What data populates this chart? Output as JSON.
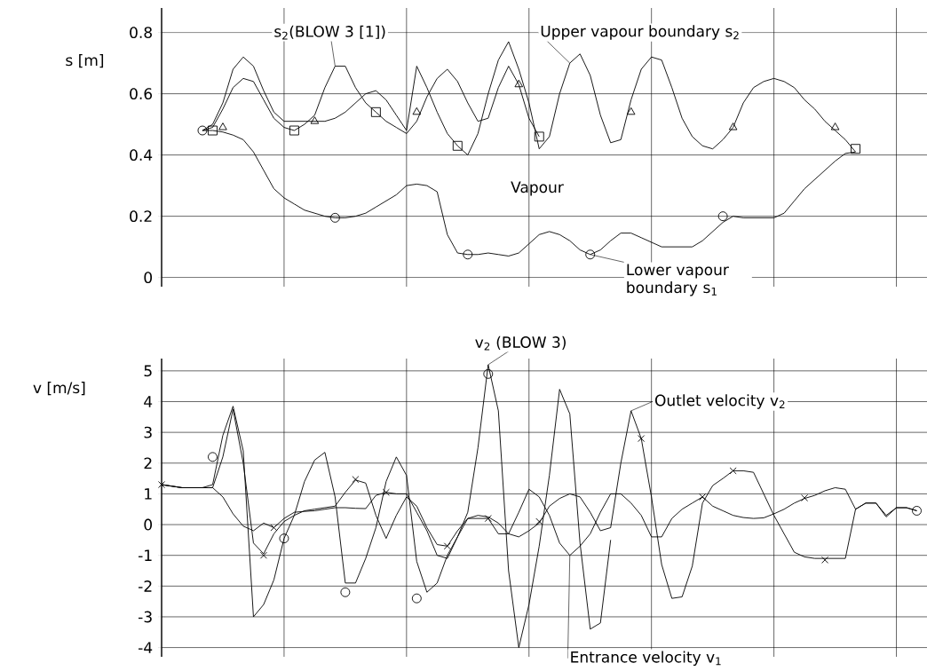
{
  "chart_data": [
    {
      "type": "line",
      "ylabel": "s [m]",
      "ylim": [
        -0.03,
        0.88
      ],
      "yticks": [
        0,
        0.2,
        0.4,
        0.6,
        0.8
      ],
      "grid": true,
      "tick_labels": "y",
      "annotations": [
        "Vapour"
      ],
      "categories": [
        null,
        null,
        null,
        null,
        null,
        null,
        null,
        null,
        null,
        null,
        null,
        null,
        null,
        null,
        null,
        null,
        null,
        null,
        null,
        null,
        null,
        null,
        null,
        null,
        null,
        null,
        null,
        null,
        null,
        null,
        null,
        null,
        null,
        null,
        null,
        null,
        null,
        null,
        null,
        null,
        null,
        null,
        null,
        null,
        null,
        null,
        null,
        null,
        null,
        null,
        null,
        null,
        null,
        null,
        null,
        null,
        null,
        null,
        null,
        null,
        null,
        null,
        null,
        null,
        null,
        null,
        null,
        null,
        null,
        null,
        null,
        null,
        null,
        null,
        null
      ],
      "series": [
        {
          "name": "Upper vapour boundary s$_{2}$",
          "color": "#000000",
          "values": [
            null,
            null,
            null,
            null,
            0.48,
            0.5,
            0.57,
            0.68,
            0.72,
            0.69,
            0.61,
            0.54,
            0.51,
            0.51,
            0.51,
            0.51,
            0.51,
            0.52,
            0.54,
            0.57,
            0.6,
            0.61,
            0.58,
            0.53,
            0.48,
            0.69,
            0.62,
            0.54,
            0.47,
            0.43,
            0.4,
            0.47,
            0.6,
            0.71,
            0.77,
            0.68,
            0.57,
            0.42,
            0.46,
            0.6,
            0.7,
            0.73,
            0.66,
            0.53,
            0.44,
            0.45,
            0.58,
            0.68,
            0.72,
            0.71,
            0.62,
            0.52,
            0.46,
            0.43,
            0.42,
            0.45,
            0.49,
            0.57,
            0.62,
            0.64,
            0.65,
            0.64,
            0.62,
            0.58,
            0.55,
            0.51,
            0.48,
            0.45,
            0.41,
            null,
            null,
            null,
            null,
            null,
            null
          ]
        },
        {
          "name": "s$_{2}$(BLOW 3 [1])",
          "color": "#000000",
          "values": [
            null,
            null,
            null,
            null,
            0.48,
            0.49,
            0.55,
            0.62,
            0.65,
            0.64,
            0.58,
            0.52,
            0.49,
            0.48,
            0.5,
            0.53,
            0.62,
            0.69,
            0.69,
            0.62,
            0.57,
            0.54,
            0.51,
            0.49,
            0.47,
            0.51,
            0.59,
            0.65,
            0.68,
            0.64,
            0.57,
            0.51,
            0.52,
            0.62,
            0.69,
            0.63,
            0.52,
            0.46,
            null,
            null,
            null,
            null,
            null,
            null,
            null,
            null,
            null,
            null,
            null,
            null,
            null,
            null,
            null,
            null,
            null,
            null,
            null,
            null,
            null,
            null,
            null,
            null,
            null,
            null,
            null,
            null,
            null,
            null,
            null,
            null,
            null,
            null,
            null,
            null,
            null
          ]
        },
        {
          "name": "Lower vapour boundary s$_{1}$",
          "color": "#000000",
          "values": [
            null,
            null,
            null,
            null,
            0.48,
            0.48,
            0.475,
            0.465,
            0.45,
            0.41,
            0.35,
            0.29,
            0.26,
            0.24,
            0.22,
            0.21,
            0.2,
            0.195,
            0.195,
            0.2,
            0.21,
            0.23,
            0.25,
            0.27,
            0.3,
            0.305,
            0.3,
            0.28,
            0.14,
            0.08,
            0.075,
            0.075,
            0.08,
            0.075,
            0.07,
            0.08,
            0.11,
            0.14,
            0.15,
            0.14,
            0.12,
            0.09,
            0.075,
            0.09,
            0.12,
            0.145,
            0.145,
            0.13,
            0.115,
            0.1,
            0.1,
            0.1,
            0.1,
            0.12,
            0.15,
            0.18,
            0.2,
            0.195,
            0.195,
            0.195,
            0.195,
            0.21,
            0.25,
            0.29,
            0.32,
            0.35,
            0.38,
            0.405,
            0.41,
            null,
            null,
            null,
            null,
            null,
            null
          ]
        },
        {
          "type": "scatter",
          "marker": "triangle",
          "color": "#000000",
          "values": [
            null,
            null,
            null,
            null,
            null,
            null,
            0.49,
            null,
            null,
            null,
            null,
            null,
            null,
            null,
            null,
            0.51,
            null,
            null,
            null,
            null,
            null,
            null,
            null,
            null,
            null,
            0.54,
            null,
            null,
            null,
            null,
            null,
            null,
            null,
            null,
            null,
            0.63,
            null,
            null,
            null,
            null,
            null,
            null,
            null,
            null,
            null,
            null,
            0.54,
            null,
            null,
            null,
            null,
            null,
            null,
            null,
            null,
            null,
            0.49,
            null,
            null,
            null,
            null,
            null,
            null,
            null,
            null,
            null,
            0.49,
            null,
            null,
            null,
            null,
            null,
            null,
            null,
            null
          ]
        },
        {
          "type": "scatter",
          "marker": "square",
          "color": "#000000",
          "values": [
            null,
            null,
            null,
            null,
            null,
            0.48,
            null,
            null,
            null,
            null,
            null,
            null,
            null,
            0.48,
            null,
            null,
            null,
            null,
            null,
            null,
            null,
            0.54,
            null,
            null,
            null,
            null,
            null,
            null,
            null,
            0.43,
            null,
            null,
            null,
            null,
            null,
            null,
            null,
            0.46,
            null,
            null,
            null,
            null,
            null,
            null,
            null,
            null,
            null,
            null,
            null,
            null,
            null,
            null,
            null,
            null,
            null,
            null,
            null,
            null,
            null,
            null,
            null,
            null,
            null,
            null,
            null,
            null,
            null,
            null,
            0.42,
            null,
            null,
            null,
            null,
            null,
            null
          ]
        },
        {
          "type": "scatter",
          "marker": "circle",
          "color": "#000000",
          "values": [
            null,
            null,
            null,
            null,
            0.48,
            null,
            null,
            null,
            null,
            null,
            null,
            null,
            null,
            null,
            null,
            null,
            null,
            0.195,
            null,
            null,
            null,
            null,
            null,
            null,
            null,
            null,
            null,
            null,
            null,
            null,
            0.075,
            null,
            null,
            null,
            null,
            null,
            null,
            null,
            null,
            null,
            null,
            null,
            0.075,
            null,
            null,
            null,
            null,
            null,
            null,
            null,
            null,
            null,
            null,
            null,
            null,
            0.2,
            null,
            null,
            null,
            null,
            null,
            null,
            null,
            null,
            null,
            null,
            null,
            null,
            null,
            null,
            null,
            null,
            null,
            null,
            null
          ]
        }
      ]
    },
    {
      "type": "line",
      "ylabel": "v [m/s]",
      "ylim": [
        -4.3,
        5.4
      ],
      "yticks": [
        -4,
        -3,
        -2,
        -1,
        0,
        1,
        2,
        3,
        4,
        5
      ],
      "grid": true,
      "tick_labels": "y",
      "categories": [
        null,
        null,
        null,
        null,
        null,
        null,
        null,
        null,
        null,
        null,
        null,
        null,
        null,
        null,
        null,
        null,
        null,
        null,
        null,
        null,
        null,
        null,
        null,
        null,
        null,
        null,
        null,
        null,
        null,
        null,
        null,
        null,
        null,
        null,
        null,
        null,
        null,
        null,
        null,
        null,
        null,
        null,
        null,
        null,
        null,
        null,
        null,
        null,
        null,
        null,
        null,
        null,
        null,
        null,
        null,
        null,
        null,
        null,
        null,
        null,
        null,
        null,
        null,
        null,
        null,
        null,
        null,
        null,
        null,
        null,
        null,
        null,
        null,
        null,
        null
      ],
      "series": [
        {
          "name": "Outlet velocity v$_{2}$",
          "color": "#000000",
          "values": [
            1.3,
            1.25,
            1.2,
            1.2,
            1.2,
            1.2,
            2.2,
            3.75,
            2.0,
            -0.6,
            -0.95,
            -0.3,
            0.1,
            0.3,
            0.45,
            0.5,
            0.55,
            0.6,
            1.05,
            1.45,
            1.35,
            0.3,
            -0.45,
            0.3,
            0.9,
            0.6,
            -0.1,
            -0.65,
            -0.7,
            -0.2,
            0.2,
            0.3,
            0.25,
            0.05,
            -0.3,
            -0.4,
            -0.2,
            0.05,
            0.6,
            0.85,
            1.0,
            0.9,
            0.4,
            -0.2,
            -0.1,
            2.0,
            3.7,
            2.8,
            0.9,
            -1.3,
            -2.4,
            -2.35,
            -1.35,
            0.7,
            1.27,
            1.5,
            1.75,
            1.75,
            1.7,
            1.0,
            0.3,
            -0.3,
            -0.9,
            -1.05,
            -1.1,
            -1.1,
            -1.1,
            -1.1,
            0.5,
            0.7,
            0.7,
            0.3,
            0.55,
            0.55,
            0.45
          ]
        },
        {
          "name": "Entrance velocity v$_{1}$",
          "color": "#000000",
          "values": [
            1.3,
            1.25,
            1.2,
            1.2,
            1.2,
            1.2,
            0.9,
            0.35,
            -0.05,
            -0.2,
            0.05,
            -0.1,
            0.2,
            0.4,
            0.43,
            0.45,
            0.5,
            0.55,
            0.55,
            0.53,
            0.52,
            0.95,
            1.05,
            1.0,
            1.0,
            0.4,
            -0.2,
            -1.0,
            -1.1,
            -0.4,
            0.2,
            0.2,
            0.2,
            -0.3,
            -0.3,
            0.4,
            1.15,
            0.9,
            0.3,
            -0.6,
            -1.0,
            -0.7,
            -0.3,
            0.4,
            1.0,
            1.0,
            0.7,
            0.3,
            -0.4,
            -0.4,
            0.2,
            0.5,
            0.7,
            0.9,
            0.6,
            0.45,
            0.3,
            0.23,
            0.2,
            0.22,
            0.35,
            0.5,
            0.7,
            0.85,
            0.95,
            1.1,
            1.2,
            1.15,
            0.5,
            0.7,
            0.7,
            0.25,
            0.55,
            0.55,
            0.45
          ]
        },
        {
          "name": "v$_{2}$ (BLOW 3)",
          "color": "#000000",
          "values": [
            1.3,
            1.25,
            1.2,
            1.2,
            1.2,
            1.3,
            2.9,
            3.85,
            2.4,
            -3.0,
            -2.6,
            -1.8,
            -0.45,
            0.3,
            1.4,
            2.1,
            2.35,
            0.9,
            -1.9,
            -1.9,
            -1.1,
            -0.1,
            1.4,
            2.2,
            1.6,
            -1.2,
            -2.2,
            -1.9,
            -1.0,
            -0.4,
            0.4,
            2.5,
            5.2,
            3.7,
            -1.5,
            -4.0,
            -2.6,
            -0.7,
            1.6,
            4.4,
            3.6,
            -0.6,
            -3.4,
            -3.2,
            -0.5,
            null,
            null,
            null,
            null,
            null,
            null,
            null,
            null,
            null,
            null,
            null,
            null,
            null,
            null,
            null,
            null,
            null,
            null,
            null,
            null,
            null,
            null,
            null,
            null,
            null,
            null,
            null,
            null,
            null,
            null
          ]
        },
        {
          "type": "scatter",
          "marker": "circle",
          "color": "#000000",
          "values": [
            null,
            null,
            null,
            null,
            null,
            2.2,
            null,
            null,
            null,
            null,
            null,
            null,
            -0.45,
            null,
            null,
            null,
            null,
            null,
            -2.2,
            null,
            null,
            null,
            null,
            null,
            null,
            -2.4,
            null,
            null,
            null,
            null,
            null,
            null,
            4.9,
            null,
            null,
            null,
            null,
            null,
            null,
            null,
            null,
            null,
            null,
            null,
            null,
            null,
            null,
            null,
            null,
            null,
            null,
            null,
            null,
            null,
            null,
            null,
            null,
            null,
            null,
            null,
            null,
            null,
            null,
            null,
            null,
            null,
            null,
            null,
            null,
            null,
            null,
            null,
            null,
            null,
            0.45
          ]
        },
        {
          "type": "scatter",
          "marker": "cross",
          "color": "#000000",
          "values": [
            1.3,
            null,
            null,
            null,
            null,
            null,
            null,
            null,
            null,
            null,
            -1.0,
            null,
            null,
            null,
            null,
            null,
            null,
            null,
            null,
            1.47,
            null,
            null,
            null,
            null,
            null,
            null,
            null,
            null,
            -0.7,
            null,
            null,
            null,
            null,
            null,
            null,
            null,
            null,
            0.1,
            null,
            null,
            null,
            null,
            null,
            null,
            null,
            null,
            null,
            2.8,
            null,
            null,
            null,
            null,
            null,
            null,
            null,
            null,
            1.75,
            null,
            null,
            null,
            null,
            null,
            null,
            null,
            null,
            -1.15,
            null,
            null,
            null,
            null,
            null,
            null,
            null,
            null,
            null
          ]
        },
        {
          "type": "scatter",
          "marker": "cross",
          "color": "#000000",
          "values": [
            null,
            null,
            null,
            null,
            null,
            null,
            null,
            null,
            null,
            null,
            null,
            -0.1,
            null,
            null,
            null,
            null,
            null,
            null,
            null,
            null,
            null,
            null,
            1.05,
            null,
            null,
            null,
            null,
            null,
            null,
            null,
            null,
            null,
            0.2,
            null,
            null,
            null,
            null,
            null,
            null,
            null,
            null,
            null,
            null,
            null,
            null,
            null,
            null,
            null,
            null,
            null,
            null,
            null,
            null,
            0.9,
            null,
            null,
            null,
            null,
            null,
            null,
            null,
            null,
            null,
            0.87,
            null,
            null,
            null,
            null,
            null,
            null,
            null,
            null,
            null,
            null,
            null
          ]
        }
      ]
    }
  ]
}
